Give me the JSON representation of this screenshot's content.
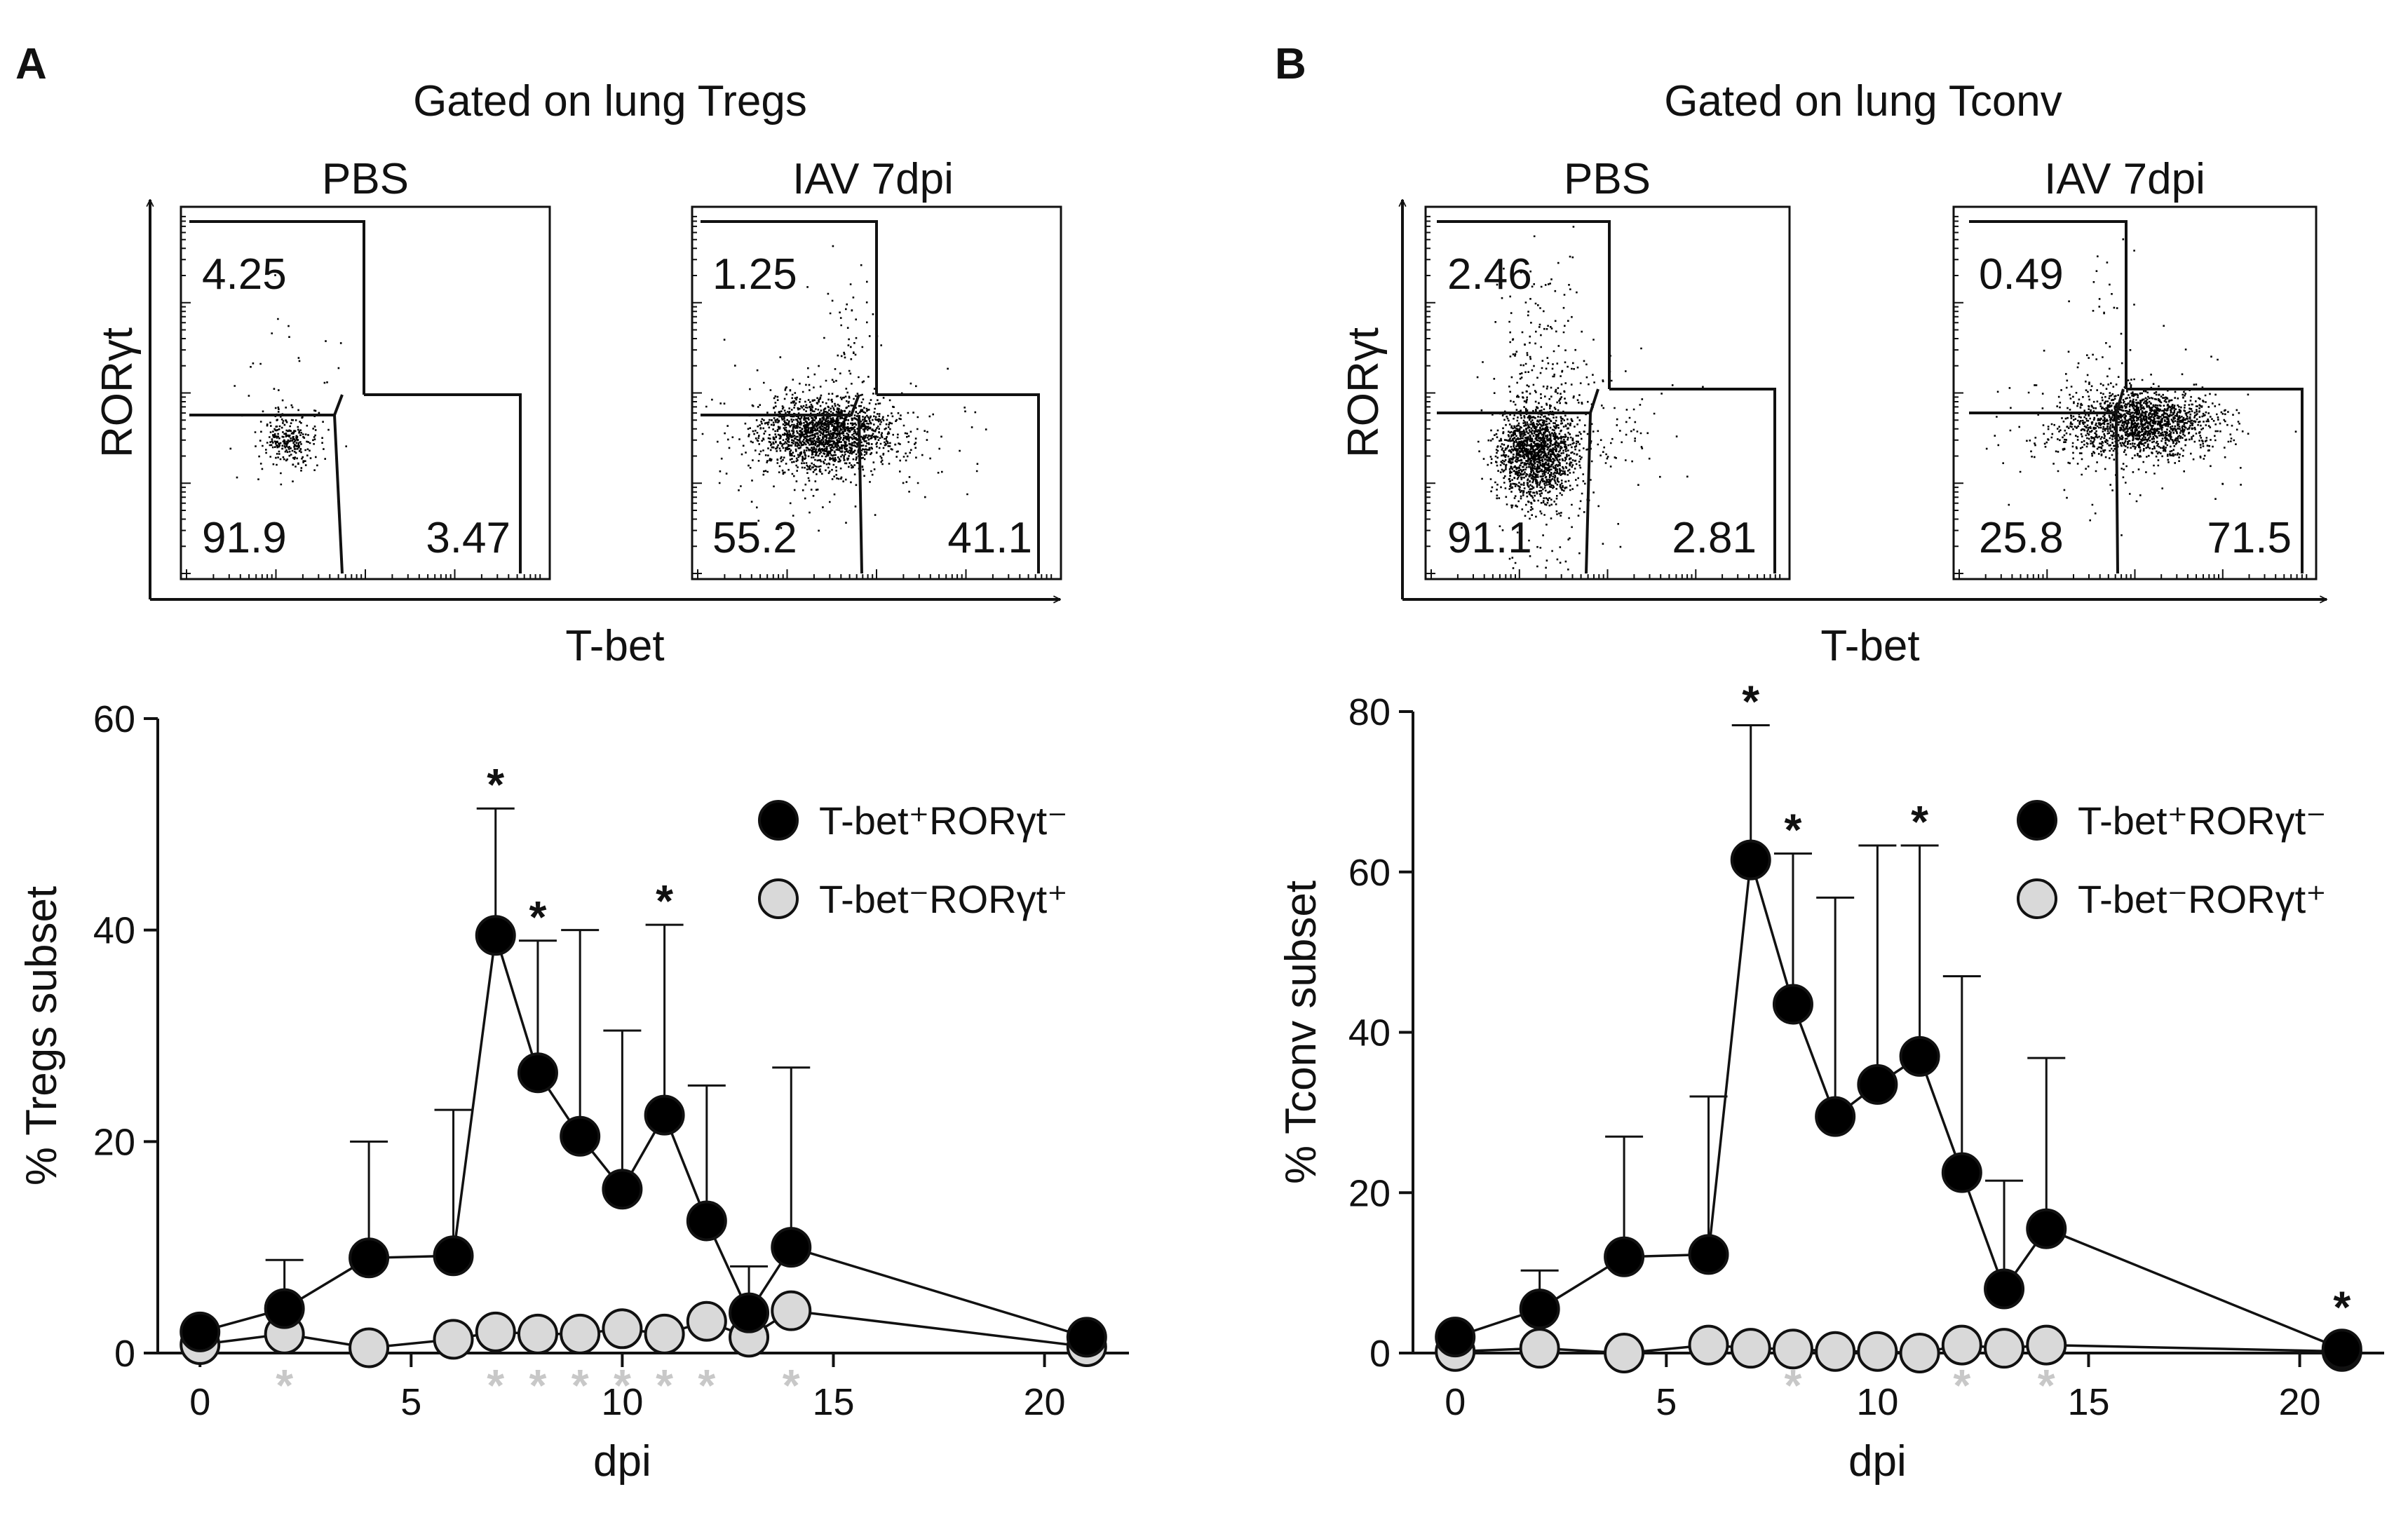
{
  "panels": [
    {
      "letter": "A",
      "flow": {
        "title": "Gated on lung Tregs",
        "xlabel": "T-bet",
        "ylabel": "RORγt",
        "conditions": [
          {
            "name": "PBS",
            "upper_left": "4.25",
            "lower_left": "91.9",
            "lower_right": "3.47"
          },
          {
            "name": "IAV 7dpi",
            "upper_left": "1.25",
            "lower_left": "55.2",
            "lower_right": "41.1"
          }
        ]
      }
    },
    {
      "letter": "B",
      "flow": {
        "title": "Gated on lung Tconv",
        "xlabel": "T-bet",
        "ylabel": "RORγt",
        "conditions": [
          {
            "name": "PBS",
            "upper_left": "2.46",
            "lower_left": "91.1",
            "lower_right": "2.81"
          },
          {
            "name": "IAV 7dpi",
            "upper_left": "0.49",
            "lower_left": "25.8",
            "lower_right": "71.5"
          }
        ]
      }
    }
  ],
  "chart_data": [
    {
      "type": "line",
      "panel": "A",
      "xlabel": "dpi",
      "ylabel": "% Tregs subset",
      "xlim": [
        -1,
        22
      ],
      "ylim": [
        0,
        60
      ],
      "xticks": [
        0,
        5,
        10,
        15,
        20
      ],
      "yticks": [
        0,
        20,
        40,
        60
      ],
      "series": [
        {
          "name": "T-bet⁺RORγt⁻",
          "legend_label": "T-bet⁺RORγt⁻",
          "color": "#000000",
          "x": [
            0,
            2,
            4,
            6,
            7,
            8,
            9,
            10,
            11,
            12,
            13,
            14,
            21
          ],
          "y": [
            2,
            4.2,
            9,
            9.2,
            39.5,
            26.5,
            20.5,
            15.5,
            22.5,
            12.5,
            3.8,
            10,
            1.5
          ],
          "err": [
            2,
            8.8,
            20,
            23,
            51.5,
            39,
            40,
            30.5,
            40.5,
            25.3,
            8.2,
            27,
            1.5
          ],
          "sig": [
            false,
            false,
            false,
            false,
            true,
            true,
            false,
            false,
            true,
            false,
            false,
            false,
            false
          ]
        },
        {
          "name": "T-bet⁻RORγt⁺",
          "legend_label": "T-bet⁻RORγt⁺",
          "color": "#d9d9d9",
          "x": [
            0,
            2,
            4,
            6,
            7,
            8,
            9,
            10,
            11,
            12,
            13,
            14,
            21
          ],
          "y": [
            0.8,
            1.8,
            0.5,
            1.3,
            2,
            1.8,
            1.8,
            2.3,
            1.8,
            3,
            1.5,
            4,
            0.6
          ],
          "sig": [
            false,
            true,
            false,
            false,
            true,
            true,
            true,
            true,
            true,
            true,
            false,
            true,
            false
          ]
        }
      ]
    },
    {
      "type": "line",
      "panel": "B",
      "xlabel": "dpi",
      "ylabel": "% Tconv subset",
      "xlim": [
        -1,
        22
      ],
      "ylim": [
        0,
        80
      ],
      "xticks": [
        0,
        5,
        10,
        15,
        20
      ],
      "yticks": [
        0,
        20,
        40,
        60,
        80
      ],
      "series": [
        {
          "name": "T-bet⁺RORγt⁻",
          "legend_label": "T-bet⁺RORγt⁻",
          "color": "#000000",
          "x": [
            0,
            2,
            4,
            6,
            7,
            8,
            9,
            10,
            11,
            12,
            13,
            14,
            21
          ],
          "y": [
            2,
            5.5,
            12,
            12.3,
            61.5,
            43.5,
            29.5,
            33.5,
            37,
            22.5,
            8,
            15.5,
            0.5
          ],
          "err": [
            2,
            10.3,
            27,
            32,
            78.3,
            62.3,
            56.8,
            63.3,
            63.3,
            47,
            21.5,
            36.8,
            0.5
          ],
          "sig": [
            false,
            false,
            false,
            false,
            true,
            true,
            false,
            false,
            true,
            false,
            false,
            false,
            true
          ]
        },
        {
          "name": "T-bet⁻RORγt⁺",
          "legend_label": "T-bet⁻RORγt⁺",
          "color": "#d9d9d9",
          "x": [
            0,
            2,
            4,
            6,
            7,
            8,
            9,
            10,
            11,
            12,
            13,
            14,
            21
          ],
          "y": [
            0.2,
            0.6,
            0,
            1,
            0.6,
            0.5,
            0.2,
            0.2,
            0,
            1,
            0.6,
            1,
            0.2
          ],
          "sig": [
            false,
            false,
            false,
            false,
            false,
            true,
            false,
            false,
            false,
            true,
            false,
            true,
            false
          ]
        }
      ]
    }
  ]
}
